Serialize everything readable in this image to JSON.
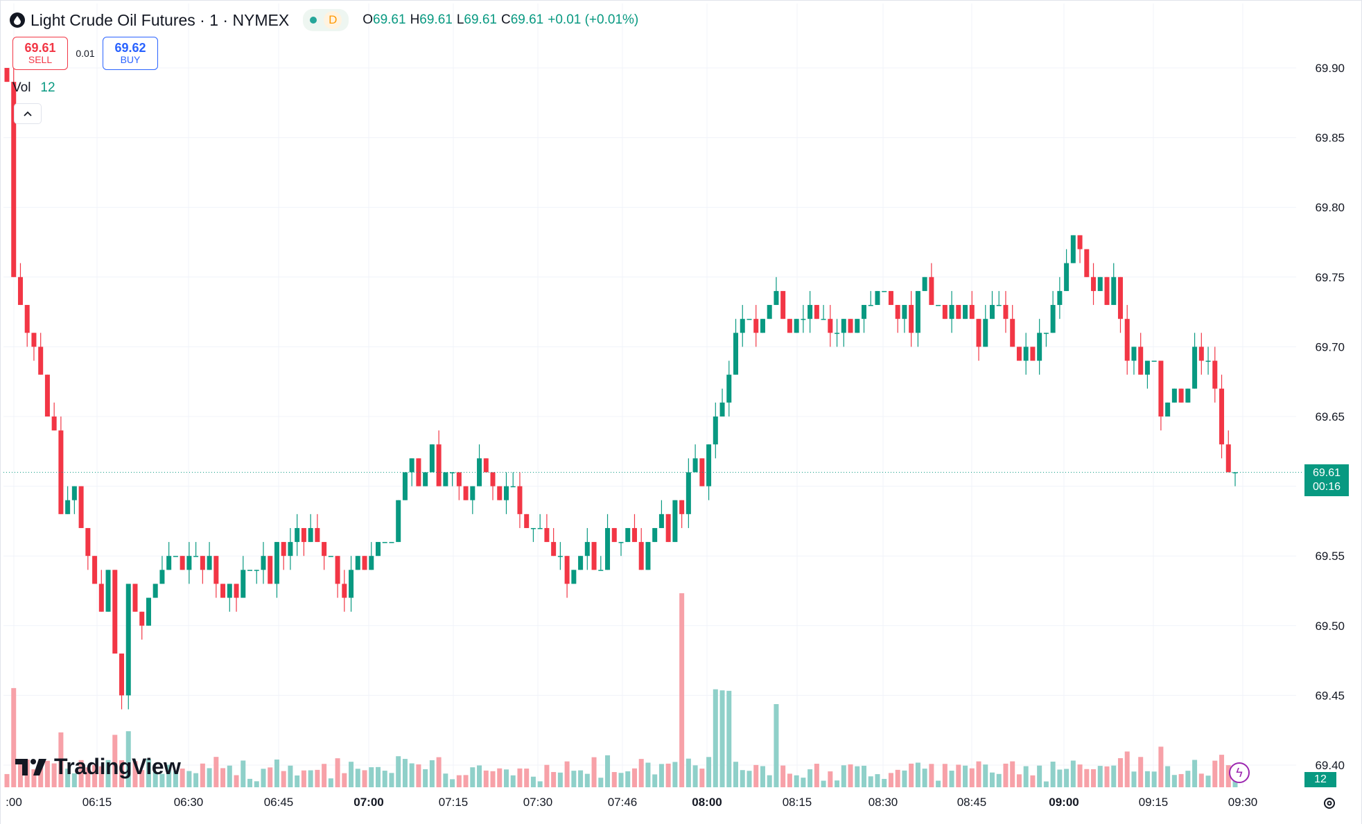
{
  "header": {
    "title": "Light Crude Oil Futures · 1 · NYMEX",
    "interval_badge": "D",
    "ohlc": [
      {
        "label": "O",
        "value": "69.61"
      },
      {
        "label": "H",
        "value": "69.61"
      },
      {
        "label": "L",
        "value": "69.61"
      },
      {
        "label": "C",
        "value": "69.61"
      },
      {
        "label": "",
        "value": "+0.01 (+0.01%)"
      }
    ]
  },
  "trade": {
    "sell_price": "69.61",
    "sell_label": "SELL",
    "spread": "0.01",
    "buy_price": "69.62",
    "buy_label": "BUY"
  },
  "volume": {
    "label": "Vol",
    "value": "12"
  },
  "logo_text": "TradingView",
  "price_tag": {
    "price": "69.61",
    "countdown": "00:16"
  },
  "volume_tag": "12",
  "colors": {
    "up": "#089981",
    "down": "#f23645",
    "vol_up": "#8fd0c9",
    "vol_down": "#f7a1a8",
    "grid": "#f0f3fa"
  },
  "icons": [
    "oil-drop-icon",
    "chevron-up-icon",
    "flash-icon",
    "gear-icon"
  ],
  "chart_data": {
    "type": "candlestick",
    "ylim": [
      69.39,
      69.92
    ],
    "y_ticks": [
      "69.90",
      "69.85",
      "69.80",
      "69.75",
      "69.70",
      "69.65",
      "69.60",
      "69.55",
      "69.50",
      "69.45",
      "69.40"
    ],
    "x_ticks": [
      ":00",
      "06:15",
      "06:30",
      "06:45",
      "07:00",
      "07:15",
      "07:30",
      "07:46",
      "08:00",
      "08:15",
      "08:30",
      "08:45",
      "09:00",
      "09:15",
      "09:30"
    ],
    "last_price": 69.61,
    "ohlc_closes": [
      69.89,
      69.75,
      69.73,
      69.71,
      69.7,
      69.68,
      69.65,
      69.64,
      69.58,
      69.59,
      69.6,
      69.57,
      69.55,
      69.53,
      69.51,
      69.54,
      69.48,
      69.45,
      69.53,
      69.51,
      69.5,
      69.52,
      69.53,
      69.54,
      69.55,
      69.55,
      69.54,
      69.55,
      69.55,
      69.54,
      69.55,
      69.53,
      69.52,
      69.53,
      69.52,
      69.54,
      69.54,
      69.54,
      69.55,
      69.53,
      69.56,
      69.55,
      69.56,
      69.57,
      69.56,
      69.57,
      69.56,
      69.55,
      69.55,
      69.53,
      69.52,
      69.54,
      69.55,
      69.54,
      69.55,
      69.56,
      69.56,
      69.56,
      69.59,
      69.61,
      69.62,
      69.6,
      69.61,
      69.63,
      69.6,
      69.61,
      69.61,
      69.6,
      69.59,
      69.6,
      69.62,
      69.61,
      69.6,
      69.59,
      69.6,
      69.6,
      69.58,
      69.57,
      69.57,
      69.57,
      69.56,
      69.55,
      69.55,
      69.53,
      69.54,
      69.55,
      69.56,
      69.54,
      69.54,
      69.57,
      69.56,
      69.56,
      69.57,
      69.56,
      69.54,
      69.56,
      69.57,
      69.58,
      69.56,
      69.59,
      69.58,
      69.61,
      69.62,
      69.6,
      69.63,
      69.65,
      69.66,
      69.68,
      69.71,
      69.72,
      69.72,
      69.71,
      69.72,
      69.73,
      69.74,
      69.72,
      69.71,
      69.72,
      69.72,
      69.73,
      69.72,
      69.72,
      69.71,
      69.71,
      69.72,
      69.71,
      69.72,
      69.73,
      69.73,
      69.74,
      69.74,
      69.73,
      69.72,
      69.73,
      69.71,
      69.74,
      69.75,
      69.73,
      69.73,
      69.72,
      69.73,
      69.72,
      69.73,
      69.72,
      69.7,
      69.72,
      69.73,
      69.73,
      69.72,
      69.7,
      69.69,
      69.7,
      69.69,
      69.71,
      69.71,
      69.73,
      69.74,
      69.76,
      69.78,
      69.77,
      69.75,
      69.74,
      69.75,
      69.73,
      69.75,
      69.72,
      69.69,
      69.7,
      69.68,
      69.69,
      69.69,
      69.65,
      69.66,
      69.67,
      69.66,
      69.67,
      69.7,
      69.69,
      69.69,
      69.67,
      69.63,
      69.61,
      69.61
    ],
    "volume_max": 140
  }
}
